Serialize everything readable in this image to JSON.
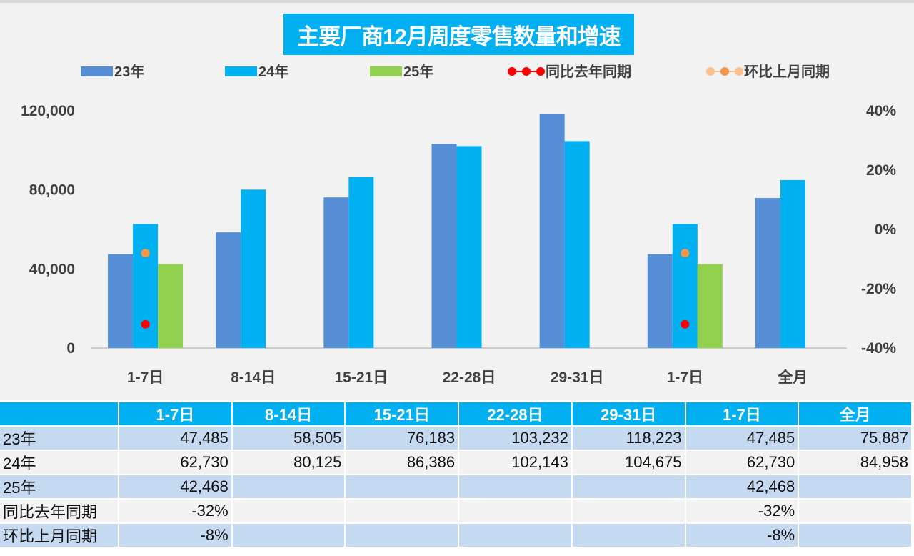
{
  "chart_data": {
    "type": "bar",
    "title": "主要厂商12月周度零售数量和增速",
    "categories": [
      "1-7日",
      "8-14日",
      "15-21日",
      "22-28日",
      "29-31日",
      "1-7日",
      "全月"
    ],
    "series": [
      {
        "name": "23年",
        "kind": "bar",
        "axis": "left",
        "color": "#558ed5",
        "values": [
          47485,
          58505,
          76183,
          103232,
          118223,
          47485,
          75887
        ]
      },
      {
        "name": "24年",
        "kind": "bar",
        "axis": "left",
        "color": "#00b0f0",
        "values": [
          62730,
          80125,
          86386,
          102143,
          104675,
          62730,
          84958
        ]
      },
      {
        "name": "25年",
        "kind": "bar",
        "axis": "left",
        "color": "#92d050",
        "values": [
          42468,
          null,
          null,
          null,
          null,
          42468,
          null
        ]
      },
      {
        "name": "同比去年同期",
        "kind": "point",
        "axis": "right",
        "color": "#ff0000",
        "values": [
          -32,
          null,
          null,
          null,
          null,
          -32,
          null
        ]
      },
      {
        "name": "环比上月同期",
        "kind": "point",
        "axis": "right",
        "color": "#f79646",
        "values": [
          -8,
          null,
          null,
          null,
          null,
          -8,
          null
        ]
      }
    ],
    "y_left": {
      "range": [
        0,
        120000
      ],
      "ticks": [
        "0",
        "40,000",
        "80,000",
        "120,000"
      ]
    },
    "y_right": {
      "range": [
        -40,
        40
      ],
      "ticks": [
        "-40%",
        "-20%",
        "0%",
        "20%",
        "40%"
      ]
    },
    "legend_position": "top",
    "grid": false
  },
  "table": {
    "headers": [
      "",
      "1-7日",
      "8-14日",
      "15-21日",
      "22-28日",
      "29-31日",
      "1-7日",
      "全月"
    ],
    "rows": [
      {
        "label": "23年",
        "cells": [
          "47,485",
          "58,505",
          "76,183",
          "103,232",
          "118,223",
          "47,485",
          "75,887"
        ]
      },
      {
        "label": "24年",
        "cells": [
          "62,730",
          "80,125",
          "86,386",
          "102,143",
          "104,675",
          "62,730",
          "84,958"
        ]
      },
      {
        "label": "25年",
        "cells": [
          "42,468",
          "",
          "",
          "",
          "",
          "42,468",
          ""
        ]
      },
      {
        "label": "同比去年同期",
        "cells": [
          "-32%",
          "",
          "",
          "",
          "",
          "-32%",
          ""
        ]
      },
      {
        "label": "环比上月同期",
        "cells": [
          "-8%",
          "",
          "",
          "",
          "",
          "-8%",
          ""
        ]
      }
    ]
  }
}
